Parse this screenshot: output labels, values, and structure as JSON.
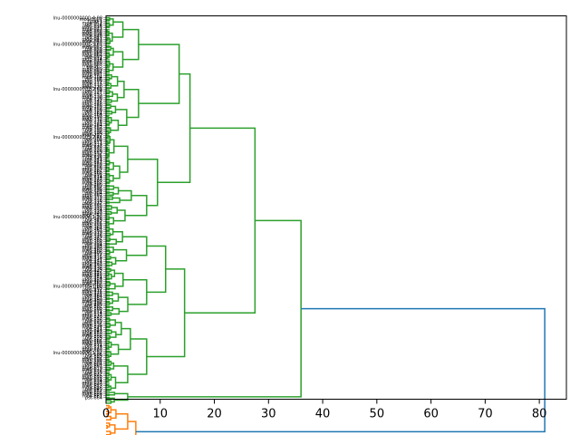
{
  "chart_data": {
    "type": "dendrogram",
    "orientation": "left",
    "title": "",
    "xlabel": "",
    "ylabel": "",
    "xlim": [
      0,
      85
    ],
    "x_ticks": [
      0,
      10,
      20,
      30,
      40,
      50,
      60,
      70,
      80
    ],
    "colors": {
      "green": "#2ca02c",
      "orange": "#ff7f0e",
      "blue": "#1f77b4"
    },
    "leaf_labels": [
      "lnu-0000000000-4.00",
      "mos-0001",
      "mdg-1",
      "mpe-012",
      "pst-014",
      "mos-016",
      "mdg-021",
      "mpe-023",
      "mos-028",
      "mdg-030",
      "mos-034",
      "mpe-040",
      "pst-041",
      "mdg-043",
      "mos-047",
      "mpe-050",
      "lnu-0000000001-3.62",
      "mos-053",
      "mdg-057",
      "pst-059",
      "mos-060",
      "mpe-064",
      "mdg-067",
      "mos-069",
      "pst-071",
      "mdg-074",
      "mos-078",
      "mpe-080",
      "mdg-083",
      "mos-085",
      "pst-0...",
      "mpe-089",
      "mdg-092",
      "mos-094",
      "mdg-097",
      "mpe-101",
      "mos-104",
      "pst-106",
      "mdg-109",
      "mos-111",
      "mpe-115",
      "mdg-118",
      "mos-120",
      "lnu-0000000002-2.88",
      "pst-124",
      "mdg-127",
      "mos-131",
      "mpe-133",
      "mdg-136",
      "mos-139",
      "pst-142",
      "mpe-145",
      "mdg-148",
      "mos-150",
      "mdg-153",
      "mpe-156",
      "mos-159",
      "pst-161",
      "mdg-164",
      "mos-167",
      "mpe-170",
      "mdg-173",
      "mos-176",
      "pst-178",
      "mdg-181",
      "mpe-184",
      "mos-187",
      "mdg-190",
      "pst-193",
      "mos-196",
      "mpe-199",
      "mdg-202",
      "lnu-0000000003-2.41",
      "mos-205",
      "pst-208",
      "mdg-211",
      "mpe-214",
      "mos-217",
      "mdg-220",
      "pst-223",
      "mos-226",
      "mpe-229",
      "mdg-232",
      "mos-235",
      "mdg-238",
      "pst-241",
      "mpe-244",
      "mos-247",
      "mdg-250",
      "mos-253",
      "pst-256",
      "mdg-259",
      "mpe-262",
      "mos-265",
      "mdg-268",
      "pst-271",
      "mos-274",
      "mpe-277",
      "mdg-280",
      "mos-283",
      "mdg-286",
      "pst-289",
      "mpe-292",
      "mos-295",
      "mdg-298",
      "mos-301",
      "pst-304",
      "mpe-307",
      "mdg-310",
      "mos-313",
      "mdg-316",
      "pst-319",
      "mos-322",
      "mpe-325",
      "mdg-328",
      "mos-331",
      "pst-334",
      "mdg-337",
      "mpe-340",
      "mos-343",
      "lnu-0000000004-1.95",
      "mdg-346",
      "pst-349",
      "mos-352",
      "mpe-355",
      "mdg-358",
      "mos-361",
      "pst-364",
      "mdg-367",
      "mpe-370",
      "mos-373",
      "mdg-376",
      "pst-379",
      "mos-382",
      "mpe-385",
      "mdg-388",
      "mos-391",
      "pst-394",
      "mdg-397",
      "mpe-400",
      "mos-403",
      "mdg-406",
      "pst-409",
      "mos-412",
      "mpe-415",
      "mdg-418",
      "mos-421",
      "pst-424",
      "mdg-427",
      "mpe-430",
      "mos-433",
      "mdg-436",
      "pst-439",
      "mos-442",
      "mpe-445",
      "mdg-448",
      "mos-451",
      "pst-454",
      "mdg-457",
      "mpe-460",
      "mos-463",
      "mdg-466",
      "lnu-0000000005-1.60",
      "pst-469",
      "mos-472",
      "mpe-475",
      "mdg-478",
      "mos-481",
      "pst-484",
      "mdg-487",
      "mpe-490",
      "mos-493",
      "mdg-496",
      "pst-499",
      "mos-502",
      "mpe-505",
      "mdg-508",
      "mos-511",
      "pst-514",
      "mdg-517",
      "mpe-520",
      "mos-523",
      "mdg-526",
      "pst-529",
      "mos-532",
      "mpe-535",
      "mdg-538",
      "mos-541",
      "pst-544",
      "mdg-547",
      "mpe-550",
      "mos-553",
      "mdg-556",
      "pst-559",
      "mos-562",
      "mpe-565",
      "mdg-568",
      "mos-571",
      "pst-574",
      "mdg-577",
      "mpe-580",
      "mos-583",
      "lnu-0000000006-1.32",
      "mdg-586",
      "pst-589",
      "mos-592",
      "mpe-595",
      "mdg-598",
      "mos-601",
      "pst-604",
      "mdg-607",
      "mpe-610",
      "mos-613",
      "mdg-616",
      "pst-619",
      "mos-622",
      "mpe-625",
      "mdg-628",
      "mos-631",
      "pst-634",
      "mdg-637",
      "mpe-640",
      "mos-643",
      "mdg-646",
      "pst-649",
      "mos-652",
      "mpe-655",
      "mdg-658",
      "mos-661",
      "pst-664"
    ],
    "merges": [
      {
        "cluster": "g1",
        "color": "green",
        "distance": 6.0,
        "span_rows": [
          16.5,
          32.5
        ]
      },
      {
        "cluster": "g2",
        "color": "green",
        "distance": 13.5,
        "span_rows": [
          24.5,
          57
        ]
      },
      {
        "cluster": "g3",
        "color": "green",
        "distance": 15.5,
        "span_rows": [
          40.8,
          79
        ]
      },
      {
        "cluster": "g4",
        "color": "green",
        "distance": 9.5,
        "span_rows": [
          107,
          126
        ]
      },
      {
        "cluster": "g5",
        "color": "green",
        "distance": 27.5,
        "span_rows": [
          60,
          116.5
        ]
      },
      {
        "cluster": "g6",
        "color": "green",
        "distance": 11.0,
        "span_rows": [
          155,
          196
        ]
      },
      {
        "cluster": "g7",
        "color": "green",
        "distance": 14.5,
        "span_rows": [
          175.5,
          230
        ]
      },
      {
        "cluster": "g8",
        "color": "green",
        "distance": 36.0,
        "span_rows": [
          88.3,
          202.7
        ]
      },
      {
        "cluster": "o1",
        "color": "orange",
        "distance": 5.5,
        "span_rows": [
          252,
          295
        ]
      },
      {
        "cluster": "root",
        "color": "blue",
        "distance": 81.0,
        "span_rows": [
          145.5,
          273.5
        ]
      }
    ]
  }
}
